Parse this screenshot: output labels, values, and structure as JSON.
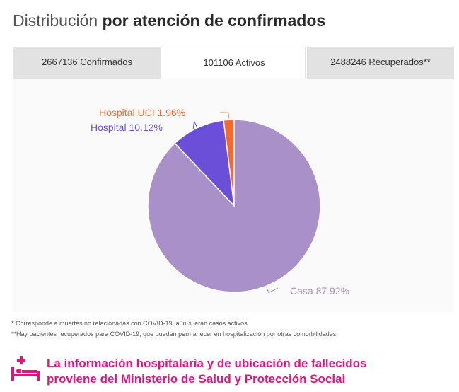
{
  "header": {
    "title_light": "Distribución",
    "title_bold": "por atención de confirmados"
  },
  "tabs": [
    {
      "label": "2667136 Confirmados",
      "active": false
    },
    {
      "label": "101106 Activos",
      "active": true
    },
    {
      "label": "2488246 Recuperados**",
      "active": false
    }
  ],
  "chart_data": {
    "type": "pie",
    "title": "",
    "slices": [
      {
        "name": "Casa",
        "value": 87.92,
        "label": "Casa 87.92%",
        "color": "#a990c9"
      },
      {
        "name": "Hospital",
        "value": 10.12,
        "label": "Hospital 10.12%",
        "color": "#6b4fd8"
      },
      {
        "name": "Hospital UCI",
        "value": 1.96,
        "label": "Hospital UCI 1.96%",
        "color": "#f26a2c"
      }
    ]
  },
  "notes": {
    "note1": "* Corresponde a muertes no relacionadas con COVID-19, aún si eran casos activos",
    "note2": "**Hay pacientes recuperados para COVID-19, que pueden permanecer en hospitalización por otras comorbilidades"
  },
  "footer": {
    "line1": "La información hospitalaria y de ubicación de fallecidos",
    "line2": "proviene del Ministerio de Salud y Protección Social",
    "color": "#e2157e",
    "icon": "hospital-bed-icon"
  }
}
